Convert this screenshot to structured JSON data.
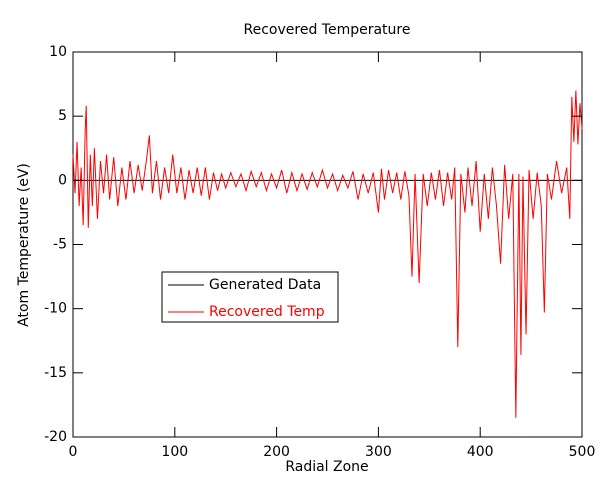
{
  "chart_data": {
    "type": "line",
    "title": "Recovered Temperature",
    "xlabel": "Radial Zone",
    "ylabel": "Atom Temperature (eV)",
    "xlim": [
      0,
      500
    ],
    "ylim": [
      -20,
      10
    ],
    "xticks": [
      0,
      100,
      200,
      300,
      400,
      500
    ],
    "yticks": [
      -20,
      -15,
      -10,
      -5,
      0,
      5,
      10
    ],
    "series": [
      {
        "name": "Generated Data",
        "color": "#000000",
        "x": [
          0,
          500
        ],
        "values": [
          0,
          0
        ]
      },
      {
        "name": "Recovered Temp",
        "color": "#ff0000",
        "x": [
          0,
          2,
          4,
          6,
          8,
          10,
          12,
          13,
          15,
          17,
          19,
          21,
          24,
          27,
          30,
          33,
          36,
          40,
          44,
          48,
          52,
          56,
          60,
          64,
          68,
          72,
          75,
          78,
          82,
          86,
          90,
          94,
          98,
          102,
          106,
          110,
          114,
          118,
          122,
          126,
          130,
          134,
          138,
          142,
          146,
          150,
          155,
          160,
          165,
          170,
          175,
          180,
          185,
          190,
          195,
          200,
          205,
          210,
          215,
          220,
          225,
          230,
          235,
          240,
          245,
          250,
          255,
          260,
          265,
          270,
          275,
          280,
          285,
          290,
          295,
          300,
          303,
          306,
          310,
          314,
          318,
          322,
          326,
          330,
          333,
          336,
          340,
          344,
          348,
          352,
          356,
          360,
          364,
          368,
          372,
          375,
          378,
          381,
          385,
          388,
          392,
          396,
          400,
          404,
          408,
          412,
          416,
          420,
          424,
          428,
          432,
          435,
          438,
          440,
          442,
          445,
          448,
          452,
          456,
          460,
          463,
          466,
          470,
          475,
          480,
          485,
          488,
          490,
          492,
          494,
          496,
          498,
          500
        ],
        "values": [
          2,
          -1,
          3,
          -2,
          1,
          -3.5,
          4,
          5.8,
          -3.7,
          2,
          -2,
          2.5,
          -3,
          1.5,
          -1,
          2,
          -1.5,
          1.8,
          -2,
          1,
          -1.5,
          1.5,
          -1,
          1.2,
          -0.8,
          1.5,
          3.5,
          -1,
          1.5,
          -1.5,
          1,
          -1,
          2,
          -1,
          1,
          -1.5,
          0.8,
          -1,
          1,
          -1.2,
          1,
          -1.5,
          0.6,
          -0.8,
          0.5,
          -0.6,
          0.6,
          -0.5,
          0.5,
          -0.8,
          0.7,
          -0.5,
          0.6,
          -0.8,
          0.5,
          -0.6,
          0.8,
          -1,
          0.6,
          -0.8,
          0.5,
          -0.7,
          0.6,
          -0.5,
          0.8,
          -0.6,
          0.5,
          -0.8,
          0.4,
          -0.6,
          0.7,
          -1.5,
          0.5,
          -1,
          0.6,
          -2.5,
          0.9,
          -1.5,
          0.8,
          -1,
          0.6,
          -1.5,
          0.7,
          -1.2,
          -7.5,
          0.5,
          -8,
          0.5,
          -2,
          0.6,
          -1.5,
          0.8,
          -2,
          0.6,
          -1.5,
          1,
          -13,
          0.5,
          -2.5,
          1,
          -2,
          1.5,
          -4,
          0.5,
          -3,
          1,
          -2,
          -6.5,
          1.2,
          -3,
          0.5,
          -18.5,
          0.5,
          -13.6,
          0.3,
          -12,
          0.8,
          -3,
          0.6,
          -2,
          -10.3,
          0.5,
          -1.5,
          1.5,
          -1,
          1,
          -3,
          6.5,
          3,
          7,
          2.8,
          6,
          4
        ]
      }
    ]
  }
}
